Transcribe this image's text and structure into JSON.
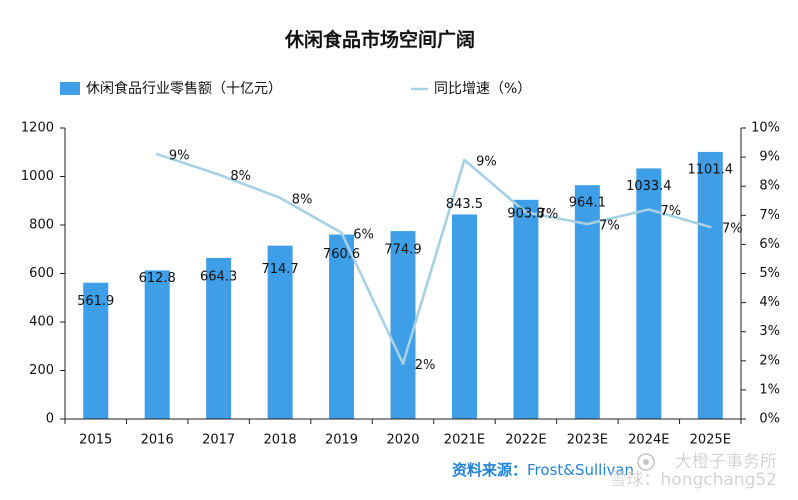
{
  "colors": {
    "bar": "#3f9ee8",
    "line": "#a6d1e4",
    "axis": "#222222",
    "source_text": "#2283d8",
    "watermark": "#8c8c8c"
  },
  "source": {
    "label": "资料来源：",
    "text": "Frost&Sullivan"
  },
  "watermark": {
    "line1": "大橙子事务所",
    "line2": "雪球：hongchang52"
  },
  "chart_data": {
    "type": "bar",
    "title": "休闲食品市场空间广阔",
    "categories": [
      "2015",
      "2016",
      "2017",
      "2018",
      "2019",
      "2020",
      "2021E",
      "2022E",
      "2023E",
      "2024E",
      "2025E"
    ],
    "series": [
      {
        "name": "休闲食品行业零售额（十亿元）",
        "type": "bar",
        "axis": "left",
        "values": [
          561.9,
          612.8,
          664.3,
          714.7,
          760.6,
          774.9,
          843.5,
          903.8,
          964.1,
          1033.4,
          1101.4
        ]
      },
      {
        "name": "同比增速（%）",
        "type": "line",
        "axis": "right",
        "values": [
          null,
          9.1,
          8.4,
          7.6,
          6.4,
          1.9,
          8.9,
          7.1,
          6.7,
          7.2,
          6.6
        ],
        "labels": [
          null,
          "9%",
          "8%",
          "8%",
          "6%",
          "2%",
          "9%",
          "7%",
          "7%",
          "7%",
          "7%"
        ]
      }
    ],
    "y_left": {
      "min": 0,
      "max": 1200,
      "ticks": [
        0,
        200,
        400,
        600,
        800,
        1000,
        1200
      ]
    },
    "y_right": {
      "min": 0,
      "max": 10,
      "ticks": [
        0,
        1,
        2,
        3,
        4,
        5,
        6,
        7,
        8,
        9,
        10
      ],
      "tick_labels": [
        "0%",
        "1%",
        "2%",
        "3%",
        "4%",
        "5%",
        "6%",
        "7%",
        "8%",
        "9%",
        "10%"
      ]
    },
    "legend_position": "top",
    "grid": false
  }
}
